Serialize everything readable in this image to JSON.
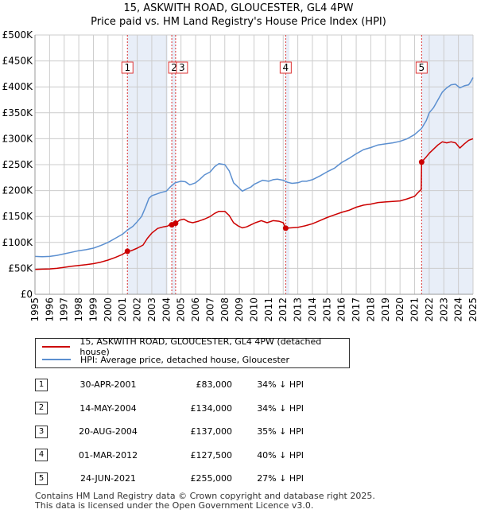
{
  "title_line1": "15, ASKWITH ROAD, GLOUCESTER, GL4 4PW",
  "title_line2": "Price paid vs. HM Land Registry's House Price Index (HPI)",
  "legend": {
    "property": "15, ASKWITH ROAD, GLOUCESTER, GL4 4PW (detached house)",
    "hpi": "HPI: Average price, detached house, Gloucester"
  },
  "colors": {
    "property": "#cc0000",
    "hpi": "#5b8fd0",
    "shade": "#e8eef8",
    "grid": "#cccccc",
    "marker_line": "#dd3333"
  },
  "chart_data": {
    "type": "line",
    "xlim": [
      1995,
      2025
    ],
    "ylim": [
      0,
      500000
    ],
    "x_ticks": [
      1995,
      1996,
      1997,
      1998,
      1999,
      2000,
      2001,
      2002,
      2003,
      2004,
      2005,
      2006,
      2007,
      2008,
      2009,
      2010,
      2011,
      2012,
      2013,
      2014,
      2015,
      2016,
      2017,
      2018,
      2019,
      2020,
      2021,
      2022,
      2023,
      2024,
      2025
    ],
    "y_ticks": [
      0,
      50000,
      100000,
      150000,
      200000,
      250000,
      300000,
      350000,
      400000,
      450000,
      500000
    ],
    "y_tick_labels": [
      "£0",
      "£50K",
      "£100K",
      "£150K",
      "£200K",
      "£250K",
      "£300K",
      "£350K",
      "£400K",
      "£450K",
      "£500K"
    ],
    "shaded_spans": [
      [
        2001.33,
        2004.08
      ],
      [
        2004.37,
        2004.63
      ],
      [
        2012.17,
        2012.42
      ],
      [
        2021.48,
        2025
      ]
    ],
    "series": [
      {
        "name": "hpi",
        "points": [
          [
            1995.0,
            73000
          ],
          [
            1995.5,
            72500
          ],
          [
            1996.0,
            73000
          ],
          [
            1996.5,
            75000
          ],
          [
            1997.0,
            78000
          ],
          [
            1997.5,
            81000
          ],
          [
            1998.0,
            84000
          ],
          [
            1998.5,
            86000
          ],
          [
            1999.0,
            89000
          ],
          [
            1999.5,
            94000
          ],
          [
            2000.0,
            100000
          ],
          [
            2000.5,
            108000
          ],
          [
            2001.0,
            116000
          ],
          [
            2001.33,
            124000
          ],
          [
            2001.7,
            131000
          ],
          [
            2002.0,
            140000
          ],
          [
            2002.3,
            150000
          ],
          [
            2002.6,
            170000
          ],
          [
            2002.8,
            185000
          ],
          [
            2003.0,
            190000
          ],
          [
            2003.3,
            193000
          ],
          [
            2003.6,
            196000
          ],
          [
            2004.0,
            199000
          ],
          [
            2004.3,
            208000
          ],
          [
            2004.6,
            215000
          ],
          [
            2005.0,
            218000
          ],
          [
            2005.3,
            217000
          ],
          [
            2005.6,
            211000
          ],
          [
            2006.0,
            215000
          ],
          [
            2006.3,
            222000
          ],
          [
            2006.6,
            230000
          ],
          [
            2007.0,
            236000
          ],
          [
            2007.3,
            246000
          ],
          [
            2007.6,
            252000
          ],
          [
            2008.0,
            250000
          ],
          [
            2008.3,
            238000
          ],
          [
            2008.6,
            215000
          ],
          [
            2008.9,
            207000
          ],
          [
            2009.2,
            199000
          ],
          [
            2009.5,
            203000
          ],
          [
            2009.8,
            207000
          ],
          [
            2010.0,
            212000
          ],
          [
            2010.3,
            216000
          ],
          [
            2010.6,
            220000
          ],
          [
            2011.0,
            218000
          ],
          [
            2011.3,
            221000
          ],
          [
            2011.6,
            222000
          ],
          [
            2012.0,
            220000
          ],
          [
            2012.3,
            216000
          ],
          [
            2012.6,
            214000
          ],
          [
            2013.0,
            215000
          ],
          [
            2013.3,
            218000
          ],
          [
            2013.6,
            218000
          ],
          [
            2014.0,
            221000
          ],
          [
            2014.5,
            228000
          ],
          [
            2015.0,
            236000
          ],
          [
            2015.5,
            243000
          ],
          [
            2016.0,
            254000
          ],
          [
            2016.5,
            262000
          ],
          [
            2017.0,
            271000
          ],
          [
            2017.5,
            279000
          ],
          [
            2018.0,
            283000
          ],
          [
            2018.5,
            288000
          ],
          [
            2019.0,
            290000
          ],
          [
            2019.5,
            292000
          ],
          [
            2020.0,
            295000
          ],
          [
            2020.5,
            300000
          ],
          [
            2021.0,
            308000
          ],
          [
            2021.48,
            320000
          ],
          [
            2021.8,
            335000
          ],
          [
            2022.0,
            350000
          ],
          [
            2022.3,
            360000
          ],
          [
            2022.6,
            375000
          ],
          [
            2022.9,
            390000
          ],
          [
            2023.2,
            398000
          ],
          [
            2023.5,
            404000
          ],
          [
            2023.8,
            405000
          ],
          [
            2024.1,
            398000
          ],
          [
            2024.4,
            402000
          ],
          [
            2024.7,
            404000
          ],
          [
            2024.85,
            410000
          ],
          [
            2025.0,
            418000
          ]
        ]
      },
      {
        "name": "property",
        "points": [
          [
            1995.0,
            48000
          ],
          [
            1995.5,
            48500
          ],
          [
            1996.0,
            49000
          ],
          [
            1996.5,
            50000
          ],
          [
            1997.0,
            52000
          ],
          [
            1997.5,
            54000
          ],
          [
            1998.0,
            55500
          ],
          [
            1998.5,
            57000
          ],
          [
            1999.0,
            59000
          ],
          [
            1999.5,
            62000
          ],
          [
            2000.0,
            66000
          ],
          [
            2000.5,
            71000
          ],
          [
            2001.0,
            77000
          ],
          [
            2001.33,
            83000
          ],
          [
            2001.6,
            84000
          ],
          [
            2002.0,
            89000
          ],
          [
            2002.4,
            95000
          ],
          [
            2002.7,
            108000
          ],
          [
            2003.0,
            118000
          ],
          [
            2003.4,
            127000
          ],
          [
            2003.8,
            130000
          ],
          [
            2004.08,
            131500
          ],
          [
            2004.2,
            134000
          ],
          [
            2004.37,
            134000
          ],
          [
            2004.5,
            136000
          ],
          [
            2004.63,
            137000
          ],
          [
            2004.9,
            143000
          ],
          [
            2005.2,
            145000
          ],
          [
            2005.5,
            140000
          ],
          [
            2005.8,
            138000
          ],
          [
            2006.2,
            141000
          ],
          [
            2006.6,
            145000
          ],
          [
            2007.0,
            150000
          ],
          [
            2007.3,
            156000
          ],
          [
            2007.6,
            160000
          ],
          [
            2008.0,
            160000
          ],
          [
            2008.3,
            152000
          ],
          [
            2008.6,
            138000
          ],
          [
            2008.9,
            132000
          ],
          [
            2009.2,
            128000
          ],
          [
            2009.5,
            130000
          ],
          [
            2009.8,
            134000
          ],
          [
            2010.1,
            138000
          ],
          [
            2010.5,
            142000
          ],
          [
            2010.9,
            138000
          ],
          [
            2011.3,
            142000
          ],
          [
            2011.7,
            141000
          ],
          [
            2012.0,
            138000
          ],
          [
            2012.17,
            127500
          ],
          [
            2012.5,
            128000
          ],
          [
            2013.0,
            129000
          ],
          [
            2013.5,
            132000
          ],
          [
            2014.0,
            136000
          ],
          [
            2014.5,
            142000
          ],
          [
            2015.0,
            148000
          ],
          [
            2015.5,
            153000
          ],
          [
            2016.0,
            158000
          ],
          [
            2016.5,
            162000
          ],
          [
            2017.0,
            168000
          ],
          [
            2017.5,
            172000
          ],
          [
            2018.0,
            174000
          ],
          [
            2018.5,
            177000
          ],
          [
            2019.0,
            178000
          ],
          [
            2019.5,
            179000
          ],
          [
            2020.0,
            180000
          ],
          [
            2020.5,
            184000
          ],
          [
            2021.0,
            189000
          ],
          [
            2021.3,
            198000
          ],
          [
            2021.45,
            202000
          ],
          [
            2021.48,
            255000
          ],
          [
            2021.8,
            265000
          ],
          [
            2022.0,
            272000
          ],
          [
            2022.3,
            280000
          ],
          [
            2022.6,
            288000
          ],
          [
            2022.9,
            294000
          ],
          [
            2023.2,
            292000
          ],
          [
            2023.5,
            294000
          ],
          [
            2023.8,
            292000
          ],
          [
            2024.1,
            282000
          ],
          [
            2024.4,
            290000
          ],
          [
            2024.7,
            297000
          ],
          [
            2025.0,
            300000
          ]
        ]
      }
    ],
    "sales": [
      {
        "num": "1",
        "year": 2001.33,
        "price": 83000
      },
      {
        "num": "2",
        "year": 2004.37,
        "price": 134000
      },
      {
        "num": "3",
        "year": 2004.63,
        "price": 137000
      },
      {
        "num": "4",
        "year": 2012.17,
        "price": 127500
      },
      {
        "num": "5",
        "year": 2021.48,
        "price": 255000
      }
    ]
  },
  "transactions": [
    {
      "num": "1",
      "date": "30-APR-2001",
      "price": "£83,000",
      "hpi": "34% ↓ HPI"
    },
    {
      "num": "2",
      "date": "14-MAY-2004",
      "price": "£134,000",
      "hpi": "34% ↓ HPI"
    },
    {
      "num": "3",
      "date": "20-AUG-2004",
      "price": "£137,000",
      "hpi": "35% ↓ HPI"
    },
    {
      "num": "4",
      "date": "01-MAR-2012",
      "price": "£127,500",
      "hpi": "40% ↓ HPI"
    },
    {
      "num": "5",
      "date": "24-JUN-2021",
      "price": "£255,000",
      "hpi": "27% ↓ HPI"
    }
  ],
  "footer": {
    "line1": "Contains HM Land Registry data © Crown copyright and database right 2025.",
    "line2": "This data is licensed under the Open Government Licence v3.0."
  }
}
